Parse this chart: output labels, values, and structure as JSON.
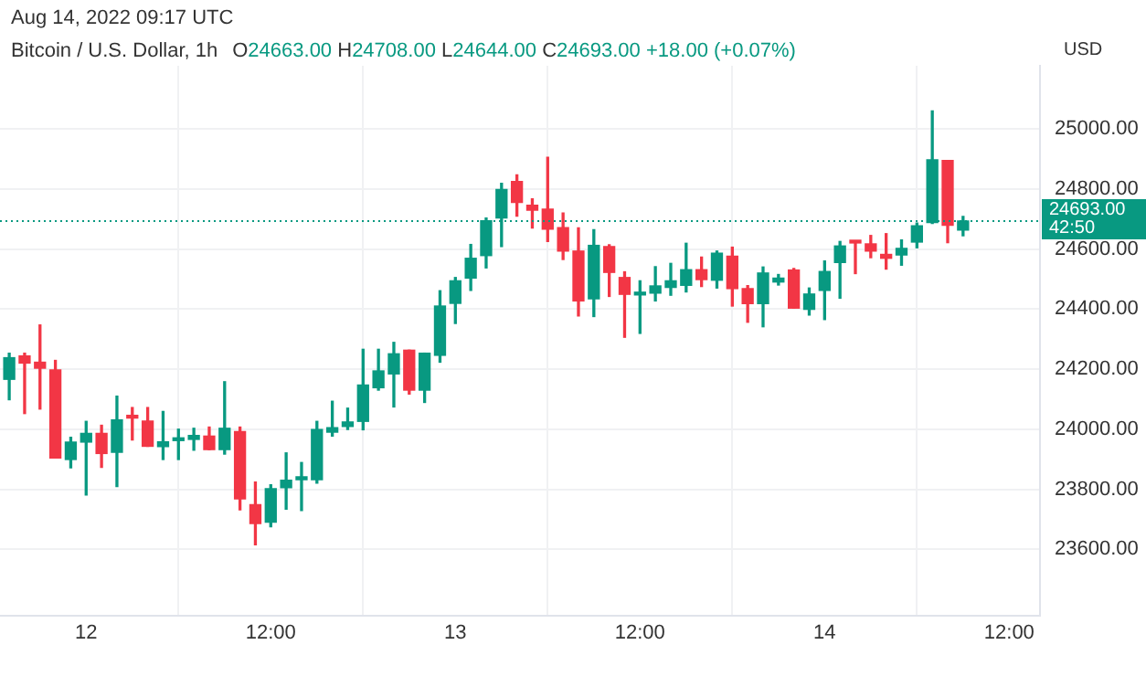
{
  "chart_data": {
    "type": "candlestick",
    "title": "Bitcoin / U.S. Dollar, 1h",
    "subtitle": "O24663.00 H24708.00 L24644.00 C24693.00 +18.00 (+0.07%)",
    "ylabel": "USD",
    "annotations": [
      "Aug 14, 2022 09:17 UTC"
    ],
    "x": [
      "2022-08-11T19:00",
      "2022-08-11T20:00",
      "2022-08-11T21:00",
      "2022-08-11T22:00",
      "2022-08-11T23:00",
      "2022-08-12T00:00",
      "2022-08-12T01:00",
      "2022-08-12T02:00",
      "2022-08-12T03:00",
      "2022-08-12T04:00",
      "2022-08-12T05:00",
      "2022-08-12T06:00",
      "2022-08-12T07:00",
      "2022-08-12T08:00",
      "2022-08-12T09:00",
      "2022-08-12T10:00",
      "2022-08-12T11:00",
      "2022-08-12T12:00",
      "2022-08-12T13:00",
      "2022-08-12T14:00",
      "2022-08-12T15:00",
      "2022-08-12T16:00",
      "2022-08-12T17:00",
      "2022-08-12T18:00",
      "2022-08-12T19:00",
      "2022-08-12T20:00",
      "2022-08-12T21:00",
      "2022-08-12T22:00",
      "2022-08-12T23:00",
      "2022-08-13T00:00",
      "2022-08-13T01:00",
      "2022-08-13T02:00",
      "2022-08-13T03:00",
      "2022-08-13T04:00",
      "2022-08-13T05:00",
      "2022-08-13T06:00",
      "2022-08-13T07:00",
      "2022-08-13T08:00",
      "2022-08-13T09:00",
      "2022-08-13T10:00",
      "2022-08-13T11:00",
      "2022-08-13T12:00",
      "2022-08-13T13:00",
      "2022-08-13T14:00",
      "2022-08-13T15:00",
      "2022-08-13T16:00",
      "2022-08-13T17:00",
      "2022-08-13T18:00",
      "2022-08-13T19:00",
      "2022-08-13T20:00",
      "2022-08-13T21:00",
      "2022-08-13T22:00",
      "2022-08-13T23:00",
      "2022-08-14T00:00",
      "2022-08-14T01:00",
      "2022-08-14T02:00",
      "2022-08-14T03:00",
      "2022-08-14T04:00",
      "2022-08-14T05:00",
      "2022-08-14T06:00",
      "2022-08-14T07:00",
      "2022-08-14T08:00",
      "2022-08-14T09:00"
    ],
    "ohlc": [
      [
        24166,
        24253,
        24098,
        24238
      ],
      [
        24244,
        24253,
        24052,
        24220
      ],
      [
        24223,
        24347,
        24067,
        24203
      ],
      [
        24197,
        24229,
        23904,
        23904
      ],
      [
        23899,
        23973,
        23871,
        23957
      ],
      [
        23957,
        24026,
        23781,
        23986
      ],
      [
        23986,
        24013,
        23873,
        23919
      ],
      [
        23923,
        24110,
        23809,
        24031
      ],
      [
        24046,
        24072,
        23964,
        24037
      ],
      [
        24027,
        24072,
        23943,
        23943
      ],
      [
        23942,
        24059,
        23899,
        23958
      ],
      [
        23962,
        24000,
        23899,
        23970
      ],
      [
        23966,
        24003,
        23930,
        23979
      ],
      [
        23977,
        24007,
        23932,
        23932
      ],
      [
        23932,
        24158,
        23917,
        24003
      ],
      [
        23992,
        24007,
        23731,
        23768
      ],
      [
        23749,
        23824,
        23615,
        23686
      ],
      [
        23690,
        23815,
        23675,
        23802
      ],
      [
        23805,
        23921,
        23734,
        23830
      ],
      [
        23832,
        23889,
        23729,
        23841
      ],
      [
        23832,
        24026,
        23820,
        23999
      ],
      [
        23990,
        24093,
        23977,
        24005
      ],
      [
        24009,
        24070,
        23999,
        24024
      ],
      [
        24026,
        24266,
        23998,
        24147
      ],
      [
        24138,
        24266,
        24130,
        24194
      ],
      [
        24184,
        24289,
        24074,
        24251
      ],
      [
        24263,
        24263,
        24117,
        24130
      ],
      [
        24130,
        24253,
        24089,
        24253
      ],
      [
        24246,
        24461,
        24223,
        24410
      ],
      [
        24419,
        24505,
        24352,
        24494
      ],
      [
        24503,
        24615,
        24462,
        24569
      ],
      [
        24578,
        24703,
        24537,
        24694
      ],
      [
        24703,
        24819,
        24608,
        24798
      ],
      [
        24825,
        24847,
        24709,
        24755
      ],
      [
        24746,
        24767,
        24670,
        24729
      ],
      [
        24733,
        24905,
        24625,
        24666
      ],
      [
        24671,
        24720,
        24565,
        24593
      ],
      [
        24593,
        24670,
        24377,
        24427
      ],
      [
        24434,
        24664,
        24375,
        24612
      ],
      [
        24608,
        24614,
        24442,
        24522
      ],
      [
        24505,
        24524,
        24306,
        24449
      ],
      [
        24447,
        24494,
        24319,
        24453
      ],
      [
        24453,
        24541,
        24427,
        24477
      ],
      [
        24472,
        24552,
        24446,
        24494
      ],
      [
        24479,
        24619,
        24457,
        24531
      ],
      [
        24531,
        24573,
        24475,
        24498
      ],
      [
        24496,
        24593,
        24470,
        24586
      ],
      [
        24576,
        24606,
        24410,
        24468
      ],
      [
        24468,
        24478,
        24356,
        24418
      ],
      [
        24418,
        24540,
        24341,
        24520
      ],
      [
        24490,
        24515,
        24480,
        24503
      ],
      [
        24530,
        24535,
        24403,
        24403
      ],
      [
        24399,
        24470,
        24380,
        24450
      ],
      [
        24462,
        24560,
        24365,
        24525
      ],
      [
        24555,
        24625,
        24436,
        24610
      ],
      [
        24625,
        24625,
        24518,
        24620
      ],
      [
        24617,
        24645,
        24571,
        24593
      ],
      [
        24582,
        24651,
        24533,
        24569
      ],
      [
        24580,
        24630,
        24546,
        24602
      ],
      [
        24623,
        24686,
        24604,
        24677
      ],
      [
        24688,
        25060,
        24685,
        24897
      ],
      [
        24895,
        24895,
        24621,
        24679
      ],
      [
        24663,
        24708,
        24644,
        24693
      ]
    ],
    "colors": [
      "#089981",
      "#f23645",
      "#f23645",
      "#f23645",
      "#089981",
      "#089981",
      "#f23645",
      "#089981",
      "#f23645",
      "#f23645",
      "#089981",
      "#089981",
      "#089981",
      "#f23645",
      "#089981",
      "#f23645",
      "#f23645",
      "#089981",
      "#089981",
      "#089981",
      "#089981",
      "#089981",
      "#089981",
      "#089981",
      "#089981",
      "#089981",
      "#f23645",
      "#089981",
      "#089981",
      "#089981",
      "#089981",
      "#089981",
      "#089981",
      "#f23645",
      "#f23645",
      "#f23645",
      "#f23645",
      "#f23645",
      "#089981",
      "#f23645",
      "#f23645",
      "#089981",
      "#089981",
      "#089981",
      "#089981",
      "#f23645",
      "#089981",
      "#f23645",
      "#f23645",
      "#089981",
      "#089981",
      "#f23645",
      "#089981",
      "#089981",
      "#089981",
      "#f23645",
      "#f23645",
      "#f23645",
      "#089981",
      "#089981",
      "#089981",
      "#f23645",
      "#089981"
    ],
    "xlim": [
      "2022-08-11T18:24",
      "2022-08-14T14:00"
    ],
    "xticks": [
      {
        "value": "2022-08-12T00:00",
        "label": "12"
      },
      {
        "value": "2022-08-12T12:00",
        "label": "12:00"
      },
      {
        "value": "2022-08-13T00:00",
        "label": "13"
      },
      {
        "value": "2022-08-13T12:00",
        "label": "12:00"
      },
      {
        "value": "2022-08-14T00:00",
        "label": "14"
      },
      {
        "value": "2022-08-14T12:00",
        "label": "12:00"
      }
    ],
    "ylim": [
      23380,
      25210
    ],
    "yticks": [
      {
        "value": 23600,
        "label": "23600.00"
      },
      {
        "value": 23800,
        "label": "23800.00"
      },
      {
        "value": 24000,
        "label": "24000.00"
      },
      {
        "value": 24200,
        "label": "24200.00"
      },
      {
        "value": 24400,
        "label": "24400.00"
      },
      {
        "value": 24600,
        "label": "24600.00"
      },
      {
        "value": 24800,
        "label": "24800.00"
      },
      {
        "value": 25000,
        "label": "25000.00"
      }
    ],
    "ref_lines": [
      {
        "axis": "y",
        "value": 24693,
        "label": "24693.00\n42:50",
        "color": "#089981",
        "line_style": "dotted"
      }
    ],
    "grid": true,
    "legend": false
  }
}
